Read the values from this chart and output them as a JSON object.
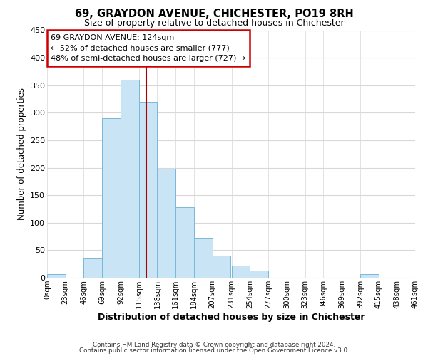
{
  "title": "69, GRAYDON AVENUE, CHICHESTER, PO19 8RH",
  "subtitle": "Size of property relative to detached houses in Chichester",
  "xlabel": "Distribution of detached houses by size in Chichester",
  "ylabel": "Number of detached properties",
  "footer_line1": "Contains HM Land Registry data © Crown copyright and database right 2024.",
  "footer_line2": "Contains public sector information licensed under the Open Government Licence v3.0.",
  "bar_edges": [
    0,
    23,
    46,
    69,
    92,
    115,
    138,
    161,
    184,
    207,
    231,
    254,
    277,
    300,
    323,
    346,
    369,
    392,
    415,
    438,
    461
  ],
  "bar_heights": [
    6,
    0,
    35,
    290,
    360,
    320,
    198,
    128,
    72,
    40,
    22,
    13,
    0,
    0,
    0,
    0,
    0,
    6,
    0,
    0
  ],
  "bar_color": "#c9e4f5",
  "bar_edgecolor": "#7ab8d9",
  "property_size": 124,
  "vline_color": "#aa0000",
  "ylim": [
    0,
    450
  ],
  "yticks": [
    0,
    50,
    100,
    150,
    200,
    250,
    300,
    350,
    400,
    450
  ],
  "xtick_labels": [
    "0sqm",
    "23sqm",
    "46sqm",
    "69sqm",
    "92sqm",
    "115sqm",
    "138sqm",
    "161sqm",
    "184sqm",
    "207sqm",
    "231sqm",
    "254sqm",
    "277sqm",
    "300sqm",
    "323sqm",
    "346sqm",
    "369sqm",
    "392sqm",
    "415sqm",
    "438sqm",
    "461sqm"
  ],
  "annotation_title": "69 GRAYDON AVENUE: 124sqm",
  "annotation_line1": "← 52% of detached houses are smaller (777)",
  "annotation_line2": "48% of semi-detached houses are larger (727) →",
  "annotation_box_color": "#ffffff",
  "annotation_box_edgecolor": "#cc0000",
  "background_color": "#ffffff",
  "grid_color": "#d8d8d8"
}
